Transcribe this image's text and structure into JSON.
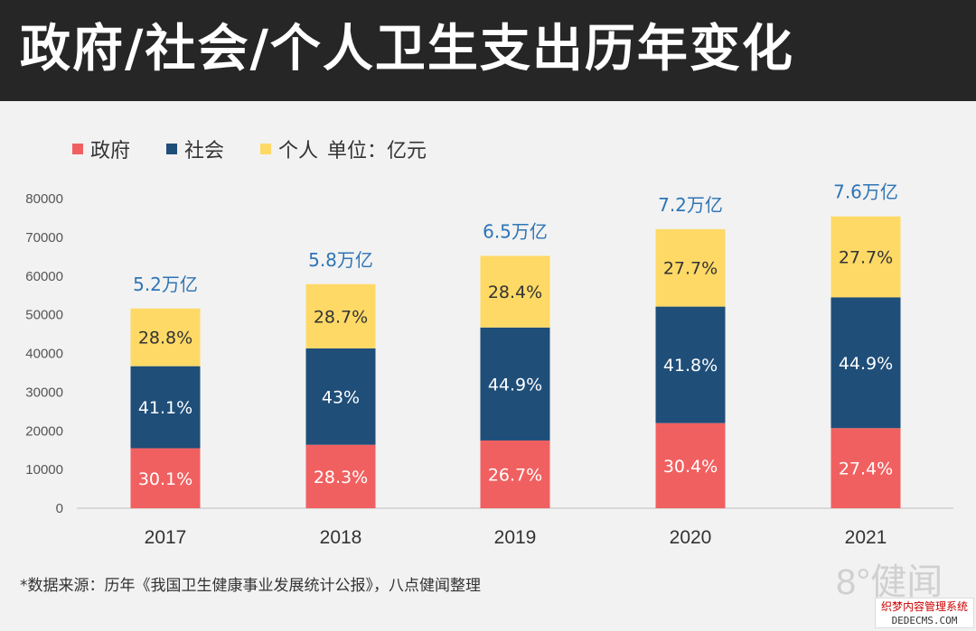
{
  "title": "政府/社会/个人卫生支出历年变化",
  "legend": {
    "items": [
      {
        "label": "政府",
        "color": "#f16060"
      },
      {
        "label": "社会",
        "color": "#1f4e79"
      },
      {
        "label": "个人",
        "color": "#ffd966"
      }
    ],
    "unit": "单位：亿元"
  },
  "chart_data": {
    "type": "bar",
    "stacked": true,
    "categories": [
      "2017",
      "2018",
      "2019",
      "2020",
      "2021"
    ],
    "series": [
      {
        "name": "政府",
        "color": "#f16060",
        "values": [
          15500,
          16400,
          17500,
          22000,
          20700
        ],
        "labels": [
          "30.1%",
          "28.3%",
          "26.7%",
          "30.4%",
          "27.4%"
        ]
      },
      {
        "name": "社会",
        "color": "#1f4e79",
        "values": [
          21200,
          24900,
          29200,
          30100,
          33800
        ],
        "labels": [
          "41.1%",
          "43%",
          "44.9%",
          "41.8%",
          "44.9%"
        ]
      },
      {
        "name": "个人",
        "color": "#ffd966",
        "values": [
          14900,
          16600,
          18500,
          20000,
          20900
        ],
        "labels": [
          "28.8%",
          "28.7%",
          "28.4%",
          "27.7%",
          "27.7%"
        ]
      }
    ],
    "totals_labels": [
      "5.2万亿",
      "5.8万亿",
      "6.5万亿",
      "7.2万亿",
      "7.6万亿"
    ],
    "ylim": [
      0,
      80000
    ],
    "yticks": [
      0,
      10000,
      20000,
      30000,
      40000,
      50000,
      60000,
      70000,
      80000
    ],
    "grid": false,
    "legend_position": "top-left"
  },
  "footnote": "*数据来源：历年《我国卫生健康事业发展统计公报》，八点健闻整理",
  "logo": "8°健闻",
  "watermark": {
    "line1": "织梦内容管理系统",
    "line2": "DEDECMS.COM"
  }
}
